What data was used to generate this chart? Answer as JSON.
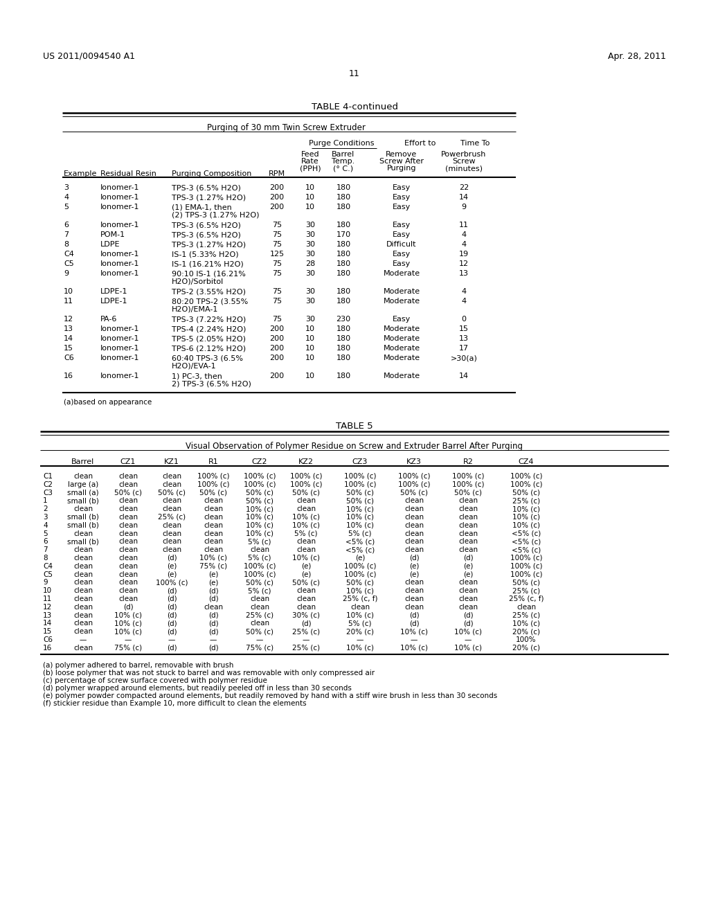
{
  "header_left": "US 2011/0094540 A1",
  "header_right": "Apr. 28, 2011",
  "page_number": "11",
  "background_color": "#ffffff",
  "text_color": "#000000",
  "table4_title": "TABLE 4-continued",
  "table4_subtitle": "Purging of 30 mm Twin Screw Extruder",
  "table4_data": [
    [
      "3",
      "Ionomer-1",
      "TPS-3 (6.5% H2O)",
      "200",
      "10",
      "180",
      "Easy",
      "22"
    ],
    [
      "4",
      "Ionomer-1",
      "TPS-3 (1.27% H2O)",
      "200",
      "10",
      "180",
      "Easy",
      "14"
    ],
    [
      "5",
      "Ionomer-1",
      "(1) EMA-1, then\n(2) TPS-3 (1.27% H2O)",
      "200",
      "10",
      "180",
      "Easy",
      "9"
    ],
    [
      "6",
      "Ionomer-1",
      "TPS-3 (6.5% H2O)",
      "75",
      "30",
      "180",
      "Easy",
      "11"
    ],
    [
      "7",
      "POM-1",
      "TPS-3 (6.5% H2O)",
      "75",
      "30",
      "170",
      "Easy",
      "4"
    ],
    [
      "8",
      "LDPE",
      "TPS-3 (1.27% H2O)",
      "75",
      "30",
      "180",
      "Difficult",
      "4"
    ],
    [
      "C4",
      "Ionomer-1",
      "IS-1 (5.33% H2O)",
      "125",
      "30",
      "180",
      "Easy",
      "19"
    ],
    [
      "C5",
      "Ionomer-1",
      "IS-1 (16.21% H2O)",
      "75",
      "28",
      "180",
      "Easy",
      "12"
    ],
    [
      "9",
      "Ionomer-1",
      "90:10 IS-1 (16.21%\nH2O)/Sorbitol",
      "75",
      "30",
      "180",
      "Moderate",
      "13"
    ],
    [
      "10",
      "LDPE-1",
      "TPS-2 (3.55% H2O)",
      "75",
      "30",
      "180",
      "Moderate",
      "4"
    ],
    [
      "11",
      "LDPE-1",
      "80:20 TPS-2 (3.55%\nH2O)/EMA-1",
      "75",
      "30",
      "180",
      "Moderate",
      "4"
    ],
    [
      "12",
      "PA-6",
      "TPS-3 (7.22% H2O)",
      "75",
      "30",
      "230",
      "Easy",
      "0"
    ],
    [
      "13",
      "Ionomer-1",
      "TPS-4 (2.24% H2O)",
      "200",
      "10",
      "180",
      "Moderate",
      "15"
    ],
    [
      "14",
      "Ionomer-1",
      "TPS-5 (2.05% H2O)",
      "200",
      "10",
      "180",
      "Moderate",
      "13"
    ],
    [
      "15",
      "Ionomer-1",
      "TPS-6 (2.12% H2O)",
      "200",
      "10",
      "180",
      "Moderate",
      "17"
    ],
    [
      "C6",
      "Ionomer-1",
      "60:40 TPS-3 (6.5%\nH2O)/EVA-1",
      "200",
      "10",
      "180",
      "Moderate",
      ">30(a)"
    ],
    [
      "16",
      "Ionomer-1",
      "1) PC-3, then\n2) TPS-3 (6.5% H2O)",
      "200",
      "10",
      "180",
      "Moderate",
      "14"
    ]
  ],
  "table4_footnote": "(a)based on appearance",
  "table5_title": "TABLE 5",
  "table5_subtitle": "Visual Observation of Polymer Residue on Screw and Extruder Barrel After Purging",
  "table5_col_headers": [
    "",
    "Barrel",
    "CZ1",
    "KZ1",
    "R1",
    "CZ2",
    "KZ2",
    "CZ3",
    "KZ3",
    "R2",
    "CZ4"
  ],
  "table5_data": [
    [
      "C1",
      "clean",
      "clean",
      "clean",
      "100% (c)",
      "100% (c)",
      "100% (c)",
      "100% (c)",
      "100% (c)",
      "100% (c)",
      "100% (c)"
    ],
    [
      "C2",
      "large (a)",
      "clean",
      "clean",
      "100% (c)",
      "100% (c)",
      "100% (c)",
      "100% (c)",
      "100% (c)",
      "100% (c)",
      "100% (c)"
    ],
    [
      "C3",
      "small (a)",
      "50% (c)",
      "50% (c)",
      "50% (c)",
      "50% (c)",
      "50% (c)",
      "50% (c)",
      "50% (c)",
      "50% (c)",
      "50% (c)"
    ],
    [
      "1",
      "small (b)",
      "clean",
      "clean",
      "clean",
      "50% (c)",
      "clean",
      "50% (c)",
      "clean",
      "clean",
      "25% (c)"
    ],
    [
      "2",
      "clean",
      "clean",
      "clean",
      "clean",
      "10% (c)",
      "clean",
      "10% (c)",
      "clean",
      "clean",
      "10% (c)"
    ],
    [
      "3",
      "small (b)",
      "clean",
      "25% (c)",
      "clean",
      "10% (c)",
      "10% (c)",
      "10% (c)",
      "clean",
      "clean",
      "10% (c)"
    ],
    [
      "4",
      "small (b)",
      "clean",
      "clean",
      "clean",
      "10% (c)",
      "10% (c)",
      "10% (c)",
      "clean",
      "clean",
      "10% (c)"
    ],
    [
      "5",
      "clean",
      "clean",
      "clean",
      "clean",
      "10% (c)",
      "5% (c)",
      "5% (c)",
      "clean",
      "clean",
      "<5% (c)"
    ],
    [
      "6",
      "small (b)",
      "clean",
      "clean",
      "clean",
      "5% (c)",
      "clean",
      "<5% (c)",
      "clean",
      "clean",
      "<5% (c)"
    ],
    [
      "7",
      "clean",
      "clean",
      "clean",
      "clean",
      "clean",
      "clean",
      "<5% (c)",
      "clean",
      "clean",
      "<5% (c)"
    ],
    [
      "8",
      "clean",
      "clean",
      "(d)",
      "10% (c)",
      "5% (c)",
      "10% (c)",
      "(e)",
      "(d)",
      "(d)",
      "100% (c)"
    ],
    [
      "C4",
      "clean",
      "clean",
      "(e)",
      "75% (c)",
      "100% (c)",
      "(e)",
      "100% (c)",
      "(e)",
      "(e)",
      "100% (c)"
    ],
    [
      "C5",
      "clean",
      "clean",
      "(e)",
      "(e)",
      "100% (c)",
      "(e)",
      "100% (c)",
      "(e)",
      "(e)",
      "100% (c)"
    ],
    [
      "9",
      "clean",
      "clean",
      "100% (c)",
      "(e)",
      "50% (c)",
      "50% (c)",
      "50% (c)",
      "clean",
      "clean",
      "50% (c)"
    ],
    [
      "10",
      "clean",
      "clean",
      "(d)",
      "(d)",
      "5% (c)",
      "clean",
      "10% (c)",
      "clean",
      "clean",
      "25% (c)"
    ],
    [
      "11",
      "clean",
      "clean",
      "(d)",
      "(d)",
      "clean",
      "clean",
      "25% (c, f)",
      "clean",
      "clean",
      "25% (c, f)"
    ],
    [
      "12",
      "clean",
      "(d)",
      "(d)",
      "clean",
      "clean",
      "clean",
      "clean",
      "clean",
      "clean",
      "clean"
    ],
    [
      "13",
      "clean",
      "10% (c)",
      "(d)",
      "(d)",
      "25% (c)",
      "30% (c)",
      "10% (c)",
      "(d)",
      "(d)",
      "25% (c)"
    ],
    [
      "14",
      "clean",
      "10% (c)",
      "(d)",
      "(d)",
      "clean",
      "(d)",
      "5% (c)",
      "(d)",
      "(d)",
      "10% (c)"
    ],
    [
      "15",
      "clean",
      "10% (c)",
      "(d)",
      "(d)",
      "50% (c)",
      "25% (c)",
      "20% (c)",
      "10% (c)",
      "10% (c)",
      "20% (c)"
    ],
    [
      "C6",
      "—",
      "—",
      "—",
      "—",
      "—",
      "—",
      "—",
      "—",
      "—",
      "100%"
    ],
    [
      "16",
      "clean",
      "75% (c)",
      "(d)",
      "(d)",
      "75% (c)",
      "25% (c)",
      "10% (c)",
      "10% (c)",
      "10% (c)",
      "20% (c)"
    ]
  ],
  "table5_footnotes": [
    "(a) polymer adhered to barrel, removable with brush",
    "(b) loose polymer that was not stuck to barrel and was removable with only compressed air",
    "(c) percentage of screw surface covered with polymer residue",
    "(d) polymer wrapped around elements, but readily peeled off in less than 30 seconds",
    "(e) polymer powder compacted around elements, but readily removed by hand with a stiff wire brush in less than 30 seconds",
    "(f) stickier residue than Example 10, more difficult to clean the elements"
  ]
}
